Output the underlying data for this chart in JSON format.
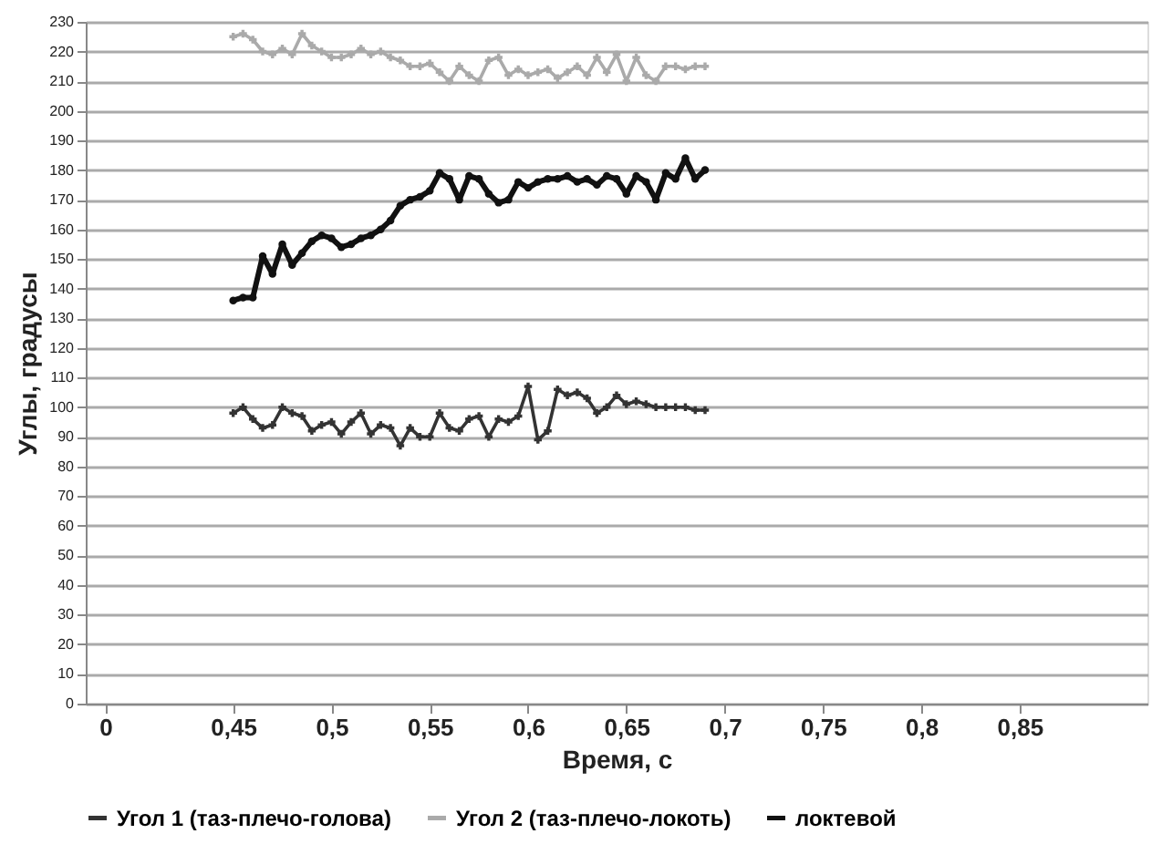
{
  "chart_data": {
    "type": "line",
    "xlabel": "Время, с",
    "ylabel": "Углы, градусы",
    "x": [
      0.45,
      0.455,
      0.46,
      0.465,
      0.47,
      0.475,
      0.48,
      0.485,
      0.49,
      0.495,
      0.5,
      0.505,
      0.51,
      0.515,
      0.52,
      0.525,
      0.53,
      0.535,
      0.54,
      0.545,
      0.55,
      0.555,
      0.56,
      0.565,
      0.57,
      0.575,
      0.58,
      0.585,
      0.59,
      0.595,
      0.6,
      0.605,
      0.61,
      0.615,
      0.62,
      0.625,
      0.63,
      0.635,
      0.64,
      0.645,
      0.65,
      0.655,
      0.66,
      0.665,
      0.67,
      0.675,
      0.68,
      0.685,
      0.69
    ],
    "series": [
      {
        "name": "Угол 1 (таз-плечо-голова)",
        "color": "#333333",
        "marker": "cross",
        "values": [
          98,
          100,
          96,
          93,
          94,
          100,
          98,
          97,
          92,
          94,
          95,
          91,
          95,
          98,
          91,
          94,
          93,
          87,
          93,
          90,
          90,
          98,
          93,
          92,
          96,
          97,
          90,
          96,
          95,
          97,
          107,
          89,
          92,
          106,
          104,
          105,
          103,
          98,
          100,
          104,
          101,
          102,
          101,
          100,
          100,
          100,
          100,
          99,
          99
        ]
      },
      {
        "name": "Угол 2 (таз-плечо-локоть)",
        "color": "#aaaaaa",
        "marker": "cross",
        "values": [
          225,
          226,
          224,
          220,
          219,
          221,
          219,
          226,
          222,
          220,
          218,
          218,
          219,
          221,
          219,
          220,
          218,
          217,
          215,
          215,
          216,
          213,
          210,
          215,
          212,
          210,
          217,
          218,
          212,
          214,
          212,
          213,
          214,
          211,
          213,
          215,
          212,
          218,
          213,
          219,
          210,
          218,
          212,
          210,
          215,
          215,
          214,
          215,
          215
        ]
      },
      {
        "name": "локтевой",
        "color": "#111111",
        "marker": "circle",
        "values": [
          136,
          137,
          137,
          151,
          145,
          155,
          148,
          152,
          156,
          158,
          157,
          154,
          155,
          157,
          158,
          160,
          163,
          168,
          170,
          171,
          173,
          179,
          177,
          170,
          178,
          177,
          172,
          169,
          170,
          176,
          174,
          176,
          177,
          177,
          178,
          176,
          177,
          175,
          178,
          177,
          172,
          178,
          176,
          170,
          179,
          177,
          184,
          177,
          180
        ]
      }
    ],
    "xlim": [
      0.375,
      0.915
    ],
    "xticks": [
      {
        "value": 0.385,
        "label": "0"
      },
      {
        "value": 0.45,
        "label": "0,45"
      },
      {
        "value": 0.5,
        "label": "0,5"
      },
      {
        "value": 0.55,
        "label": "0,55"
      },
      {
        "value": 0.6,
        "label": "0,6"
      },
      {
        "value": 0.65,
        "label": "0,65"
      },
      {
        "value": 0.7,
        "label": "0,7"
      },
      {
        "value": 0.75,
        "label": "0,75"
      },
      {
        "value": 0.8,
        "label": "0,8"
      },
      {
        "value": 0.85,
        "label": "0,85"
      }
    ],
    "ylim": [
      0,
      230
    ],
    "yticks": [
      0,
      10,
      20,
      30,
      40,
      50,
      60,
      70,
      80,
      90,
      100,
      110,
      120,
      130,
      140,
      150,
      160,
      170,
      180,
      190,
      200,
      210,
      220,
      230
    ],
    "grid": "y",
    "legend": "bottom"
  }
}
